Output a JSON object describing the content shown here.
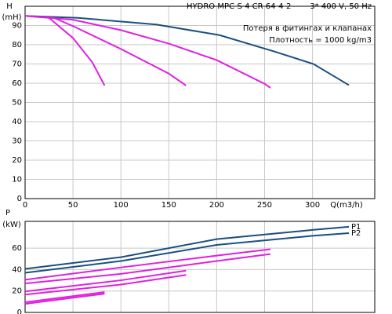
{
  "chart_data": [
    {
      "type": "line",
      "title": "HYDRO MPC-S 4 CR 64-4-2",
      "subtitle": "3* 400 V, 50 Hz",
      "annotations": [
        "Потеря в фитингах и клапанах",
        "Плотность = 1000 kg/m3"
      ],
      "y_label": "H",
      "y_unit": "(mH)",
      "x_label": "Q(m3/h)",
      "xlim": [
        0,
        365
      ],
      "xticks": [
        0,
        50,
        100,
        150,
        200,
        250,
        300
      ],
      "ylim": [
        0,
        100
      ],
      "yticks": [
        0,
        10,
        20,
        30,
        40,
        50,
        60,
        70,
        80,
        90
      ],
      "grid": true,
      "series": [
        {
          "color": "#1b4f80",
          "x": [
            0,
            55,
            137,
            203,
            260,
            301,
            338
          ],
          "values": [
            95,
            94,
            90.5,
            85,
            76.5,
            70,
            59
          ]
        },
        {
          "color": "#e020e0",
          "x": [
            0,
            50,
            100,
            150,
            200,
            250,
            256
          ],
          "values": [
            95,
            93,
            87.6,
            80.6,
            72,
            59.7,
            57.6
          ]
        },
        {
          "color": "#e020e0",
          "x": [
            0,
            30,
            50,
            100,
            150,
            168
          ],
          "values": [
            95,
            94,
            89.7,
            77.8,
            65,
            58.8
          ]
        },
        {
          "color": "#e020e0",
          "x": [
            0,
            25,
            50,
            70,
            83
          ],
          "values": [
            95,
            94,
            83.5,
            71,
            58.8
          ]
        }
      ]
    },
    {
      "type": "line",
      "y_label": "P",
      "y_unit": "(kW)",
      "xlim": [
        0,
        365
      ],
      "ylim": [
        0,
        85
      ],
      "yticks": [
        0,
        20,
        40,
        60
      ],
      "grid": true,
      "series": [
        {
          "name": "P1",
          "color": "#1b4f80",
          "x": [
            0,
            100,
            200,
            300,
            338
          ],
          "values": [
            40.7,
            51.6,
            68.4,
            77,
            80
          ]
        },
        {
          "name": "P2",
          "color": "#1b4f80",
          "x": [
            0,
            100,
            200,
            300,
            338
          ],
          "values": [
            37,
            48,
            63,
            71.5,
            74
          ]
        },
        {
          "color": "#e020e0",
          "x": [
            0,
            100,
            200,
            256
          ],
          "values": [
            30.5,
            42,
            53,
            59
          ]
        },
        {
          "color": "#e020e0",
          "x": [
            0,
            100,
            200,
            256
          ],
          "values": [
            27,
            36,
            48,
            54.5
          ]
        },
        {
          "color": "#e020e0",
          "x": [
            0,
            100,
            168
          ],
          "values": [
            19.6,
            30,
            39
          ]
        },
        {
          "color": "#e020e0",
          "x": [
            0,
            100,
            168
          ],
          "values": [
            16.7,
            26,
            35
          ]
        },
        {
          "color": "#e020e0",
          "x": [
            0,
            83
          ],
          "values": [
            9.5,
            19
          ]
        },
        {
          "color": "#e020e0",
          "x": [
            0,
            83
          ],
          "values": [
            8,
            17.5
          ]
        }
      ]
    }
  ]
}
